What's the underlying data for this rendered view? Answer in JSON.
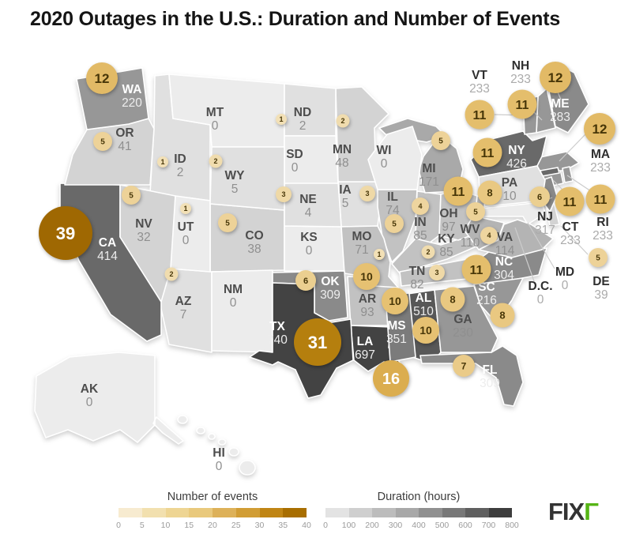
{
  "title": "2020 Outages in the U.S.: Duration and Number of Events",
  "logo": {
    "text_dark": "FIX",
    "text_green": "Γ",
    "green_color": "#55b515",
    "dark_color": "#333333"
  },
  "legends": {
    "events": {
      "title": "Number of events",
      "ticks": [
        0,
        5,
        10,
        15,
        20,
        25,
        30,
        35,
        40
      ],
      "colors": [
        "#f7ebd0",
        "#f2e0af",
        "#eed593",
        "#e9c97c",
        "#ddb159",
        "#d19d35",
        "#c08514",
        "#a86e00"
      ]
    },
    "duration": {
      "title": "Duration (hours)",
      "ticks": [
        0,
        100,
        200,
        300,
        400,
        500,
        600,
        700,
        800
      ],
      "colors": [
        "#e3e3e3",
        "#cfcfcf",
        "#bcbcbc",
        "#a8a8a8",
        "#909090",
        "#787878",
        "#5f5f5f",
        "#3d3d3d"
      ]
    }
  },
  "chart_data": {
    "type": "choropleth-map-with-proportional-symbols",
    "region": "United States",
    "title": "2020 Outages in the U.S.: Duration and Number of Events",
    "encoding": {
      "state_fill": "Duration (hours), gray scale 0-800",
      "circle_size_and_color": "Number of events, gold scale 0-40"
    },
    "states": [
      {
        "abbr": "AK",
        "duration": 0,
        "events": null
      },
      {
        "abbr": "AL",
        "duration": 510,
        "events": 10
      },
      {
        "abbr": "AR",
        "duration": 93,
        "events": 10
      },
      {
        "abbr": "AZ",
        "duration": 7,
        "events": 2
      },
      {
        "abbr": "CA",
        "duration": 414,
        "events": 39
      },
      {
        "abbr": "CO",
        "duration": 38,
        "events": 5
      },
      {
        "abbr": "CT",
        "duration": 233,
        "events": 11
      },
      {
        "abbr": "D.C.",
        "duration": 0,
        "events": null
      },
      {
        "abbr": "DE",
        "duration": 39,
        "events": 5
      },
      {
        "abbr": "FL",
        "duration": 309,
        "events": 7
      },
      {
        "abbr": "GA",
        "duration": 230,
        "events": 8
      },
      {
        "abbr": "HI",
        "duration": 0,
        "events": null
      },
      {
        "abbr": "IA",
        "duration": 5,
        "events": 3
      },
      {
        "abbr": "ID",
        "duration": 2,
        "events": 1
      },
      {
        "abbr": "IL",
        "duration": 74,
        "events": 5
      },
      {
        "abbr": "IN",
        "duration": 85,
        "events": 4
      },
      {
        "abbr": "KS",
        "duration": 0,
        "events": null
      },
      {
        "abbr": "KY",
        "duration": 85,
        "events": 2
      },
      {
        "abbr": "LA",
        "duration": 697,
        "events": 16
      },
      {
        "abbr": "MA",
        "duration": 233,
        "events": 12
      },
      {
        "abbr": "MD",
        "duration": 0,
        "events": null
      },
      {
        "abbr": "ME",
        "duration": 283,
        "events": 12
      },
      {
        "abbr": "MI",
        "duration": 171,
        "events": 5
      },
      {
        "abbr": "MN",
        "duration": 48,
        "events": 2
      },
      {
        "abbr": "MO",
        "duration": 71,
        "events": 1
      },
      {
        "abbr": "MS",
        "duration": 351,
        "events": 10
      },
      {
        "abbr": "MT",
        "duration": 0,
        "events": null
      },
      {
        "abbr": "NC",
        "duration": 304,
        "events": 11
      },
      {
        "abbr": "ND",
        "duration": 2,
        "events": 1
      },
      {
        "abbr": "NE",
        "duration": 4,
        "events": 3
      },
      {
        "abbr": "NH",
        "duration": 233,
        "events": 11
      },
      {
        "abbr": "NJ",
        "duration": 317,
        "events": 6
      },
      {
        "abbr": "NM",
        "duration": 0,
        "events": null
      },
      {
        "abbr": "NV",
        "duration": 32,
        "events": 5
      },
      {
        "abbr": "NY",
        "duration": 426,
        "events": 11
      },
      {
        "abbr": "OH",
        "duration": 97,
        "events": 11
      },
      {
        "abbr": "OK",
        "duration": 309,
        "events": 6
      },
      {
        "abbr": "OR",
        "duration": 41,
        "events": 5
      },
      {
        "abbr": "PA",
        "duration": 10,
        "events": 8
      },
      {
        "abbr": "RI",
        "duration": 233,
        "events": 11
      },
      {
        "abbr": "SC",
        "duration": 216,
        "events": 8
      },
      {
        "abbr": "SD",
        "duration": 0,
        "events": null
      },
      {
        "abbr": "TN",
        "duration": 82,
        "events": 3
      },
      {
        "abbr": "TX",
        "duration": 740,
        "events": 31
      },
      {
        "abbr": "UT",
        "duration": 0,
        "events": 1
      },
      {
        "abbr": "VA",
        "duration": 114,
        "events": 4
      },
      {
        "abbr": "VT",
        "duration": 233,
        "events": 11
      },
      {
        "abbr": "WA",
        "duration": 220,
        "events": 12
      },
      {
        "abbr": "WI",
        "duration": 0,
        "events": null
      },
      {
        "abbr": "WV",
        "duration": 110,
        "events": 5
      },
      {
        "abbr": "WY",
        "duration": 5,
        "events": 2
      }
    ]
  }
}
